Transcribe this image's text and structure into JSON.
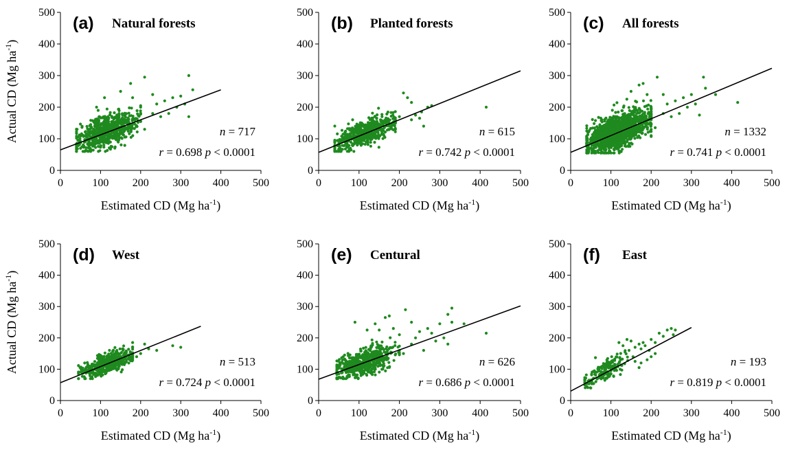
{
  "colors": {
    "points": "#1f8a1f",
    "fit_line": "#000000",
    "axes": "#000000"
  },
  "chart_data": [
    {
      "type": "scatter",
      "letter": "(a)",
      "title": "Natural forests",
      "xlabel": "Estimated CD (Mg ha-1)",
      "ylabel": "Actual CD (Mg ha-1)",
      "xlim": [
        0,
        500
      ],
      "ylim": [
        0,
        500
      ],
      "xticks": [
        "0",
        "100",
        "200",
        "300",
        "400",
        "500"
      ],
      "yticks": [
        "0",
        "100",
        "200",
        "300",
        "400",
        "500"
      ],
      "n_label": "n",
      "n_value": "= 717",
      "r_label": "r",
      "r_value": "= 0.698",
      "p_label": "p",
      "p_value": "< 0.0001",
      "n": 717,
      "r": 0.698,
      "fit": {
        "x": [
          0,
          400
        ],
        "y": [
          65,
          255
        ]
      },
      "cloud": {
        "x_range": [
          40,
          200
        ],
        "y_range": [
          60,
          240
        ],
        "center": [
          115,
          125
        ]
      },
      "points": [
        {
          "x": 210,
          "y": 295
        },
        {
          "x": 320,
          "y": 300
        },
        {
          "x": 175,
          "y": 275
        },
        {
          "x": 150,
          "y": 250
        },
        {
          "x": 230,
          "y": 240
        },
        {
          "x": 300,
          "y": 235
        },
        {
          "x": 330,
          "y": 255
        },
        {
          "x": 290,
          "y": 200
        },
        {
          "x": 260,
          "y": 220
        },
        {
          "x": 180,
          "y": 230
        },
        {
          "x": 240,
          "y": 210
        },
        {
          "x": 250,
          "y": 170
        },
        {
          "x": 270,
          "y": 180
        },
        {
          "x": 200,
          "y": 200
        },
        {
          "x": 310,
          "y": 210
        },
        {
          "x": 280,
          "y": 230
        },
        {
          "x": 320,
          "y": 170
        },
        {
          "x": 230,
          "y": 180
        },
        {
          "x": 210,
          "y": 130
        },
        {
          "x": 40,
          "y": 70
        },
        {
          "x": 60,
          "y": 60
        },
        {
          "x": 90,
          "y": 200
        },
        {
          "x": 110,
          "y": 230
        }
      ]
    },
    {
      "type": "scatter",
      "letter": "(b)",
      "title": "Planted forests",
      "xlabel": "Estimated CD (Mg ha-1)",
      "ylabel": "",
      "xlim": [
        0,
        500
      ],
      "ylim": [
        0,
        500
      ],
      "xticks": [
        "0",
        "100",
        "200",
        "300",
        "400",
        "500"
      ],
      "yticks": [
        "0",
        "100",
        "200",
        "300",
        "400",
        "500"
      ],
      "n_label": "n",
      "n_value": "= 615",
      "r_label": "r",
      "r_value": "= 0.742",
      "p_label": "p",
      "p_value": "< 0.0001",
      "n": 615,
      "r": 0.742,
      "fit": {
        "x": [
          0,
          500
        ],
        "y": [
          57,
          315
        ]
      },
      "cloud": {
        "x_range": [
          40,
          190
        ],
        "y_range": [
          60,
          200
        ],
        "center": [
          115,
          120
        ]
      },
      "points": [
        {
          "x": 210,
          "y": 245
        },
        {
          "x": 230,
          "y": 215
        },
        {
          "x": 220,
          "y": 230
        },
        {
          "x": 270,
          "y": 200
        },
        {
          "x": 280,
          "y": 205
        },
        {
          "x": 415,
          "y": 200
        },
        {
          "x": 255,
          "y": 185
        },
        {
          "x": 240,
          "y": 175
        },
        {
          "x": 260,
          "y": 140
        },
        {
          "x": 200,
          "y": 170
        },
        {
          "x": 230,
          "y": 160
        },
        {
          "x": 250,
          "y": 165
        },
        {
          "x": 190,
          "y": 130
        },
        {
          "x": 45,
          "y": 60
        }
      ]
    },
    {
      "type": "scatter",
      "letter": "(c)",
      "title": "All forests",
      "xlabel": "Estimated CD (Mg ha-1)",
      "ylabel": "",
      "xlim": [
        0,
        500
      ],
      "ylim": [
        0,
        500
      ],
      "xticks": [
        "0",
        "100",
        "200",
        "300",
        "400",
        "500"
      ],
      "yticks": [
        "0",
        "100",
        "200",
        "300",
        "400",
        "500"
      ],
      "n_label": "n",
      "n_value": "= 1332",
      "r_label": "r",
      "r_value": "= 0.741",
      "p_label": "p",
      "p_value": "< 0.0001",
      "n": 1332,
      "r": 0.741,
      "fit": {
        "x": [
          0,
          500
        ],
        "y": [
          57,
          323
        ]
      },
      "cloud": {
        "x_range": [
          40,
          200
        ],
        "y_range": [
          55,
          240
        ],
        "center": [
          115,
          122
        ]
      },
      "points": [
        {
          "x": 215,
          "y": 295
        },
        {
          "x": 330,
          "y": 295
        },
        {
          "x": 180,
          "y": 275
        },
        {
          "x": 170,
          "y": 270
        },
        {
          "x": 150,
          "y": 250
        },
        {
          "x": 230,
          "y": 240
        },
        {
          "x": 300,
          "y": 240
        },
        {
          "x": 335,
          "y": 260
        },
        {
          "x": 360,
          "y": 240
        },
        {
          "x": 415,
          "y": 215
        },
        {
          "x": 290,
          "y": 200
        },
        {
          "x": 260,
          "y": 220
        },
        {
          "x": 240,
          "y": 210
        },
        {
          "x": 250,
          "y": 170
        },
        {
          "x": 270,
          "y": 180
        },
        {
          "x": 200,
          "y": 200
        },
        {
          "x": 310,
          "y": 210
        },
        {
          "x": 280,
          "y": 230
        },
        {
          "x": 320,
          "y": 175
        },
        {
          "x": 230,
          "y": 180
        },
        {
          "x": 210,
          "y": 135
        },
        {
          "x": 190,
          "y": 240
        },
        {
          "x": 45,
          "y": 60
        }
      ]
    },
    {
      "type": "scatter",
      "letter": "(d)",
      "title": "West",
      "xlabel": "Estimated CD (Mg ha-1)",
      "ylabel": "Actual CD (Mg ha-1)",
      "xlim": [
        0,
        500
      ],
      "ylim": [
        0,
        500
      ],
      "xticks": [
        "0",
        "100",
        "200",
        "300",
        "400",
        "500"
      ],
      "yticks": [
        "0",
        "100",
        "200",
        "300",
        "400",
        "500"
      ],
      "n_label": "n",
      "n_value": "= 513",
      "r_label": "r",
      "r_value": "= 0.724",
      "p_label": "p",
      "p_value": "< 0.0001",
      "n": 513,
      "r": 0.724,
      "fit": {
        "x": [
          0,
          350
        ],
        "y": [
          57,
          237
        ]
      },
      "cloud": {
        "x_range": [
          45,
          180
        ],
        "y_range": [
          70,
          180
        ],
        "center": [
          120,
          120
        ]
      },
      "points": [
        {
          "x": 210,
          "y": 180
        },
        {
          "x": 180,
          "y": 185
        },
        {
          "x": 280,
          "y": 175
        },
        {
          "x": 300,
          "y": 170
        },
        {
          "x": 240,
          "y": 160
        },
        {
          "x": 200,
          "y": 150
        },
        {
          "x": 220,
          "y": 165
        },
        {
          "x": 190,
          "y": 140
        },
        {
          "x": 45,
          "y": 85
        }
      ]
    },
    {
      "type": "scatter",
      "letter": "(e)",
      "title": "Centural",
      "xlabel": "Estimated CD (Mg ha-1)",
      "ylabel": "",
      "xlim": [
        0,
        500
      ],
      "ylim": [
        0,
        500
      ],
      "xticks": [
        "0",
        "100",
        "200",
        "300",
        "400",
        "500"
      ],
      "yticks": [
        "0",
        "100",
        "200",
        "300",
        "400",
        "500"
      ],
      "n_label": "n",
      "n_value": "= 626",
      "r_label": "r",
      "r_value": "= 0.686",
      "p_label": "p",
      "p_value": "< 0.0001",
      "n": 626,
      "r": 0.686,
      "fit": {
        "x": [
          0,
          500
        ],
        "y": [
          68,
          302
        ]
      },
      "cloud": {
        "x_range": [
          45,
          200
        ],
        "y_range": [
          70,
          230
        ],
        "center": [
          110,
          122
        ]
      },
      "points": [
        {
          "x": 215,
          "y": 290
        },
        {
          "x": 330,
          "y": 295
        },
        {
          "x": 320,
          "y": 275
        },
        {
          "x": 175,
          "y": 270
        },
        {
          "x": 165,
          "y": 265
        },
        {
          "x": 90,
          "y": 250
        },
        {
          "x": 140,
          "y": 245
        },
        {
          "x": 230,
          "y": 250
        },
        {
          "x": 300,
          "y": 245
        },
        {
          "x": 360,
          "y": 245
        },
        {
          "x": 415,
          "y": 215
        },
        {
          "x": 330,
          "y": 250
        },
        {
          "x": 270,
          "y": 230
        },
        {
          "x": 250,
          "y": 220
        },
        {
          "x": 240,
          "y": 200
        },
        {
          "x": 290,
          "y": 190
        },
        {
          "x": 200,
          "y": 210
        },
        {
          "x": 310,
          "y": 200
        },
        {
          "x": 280,
          "y": 215
        },
        {
          "x": 320,
          "y": 180
        },
        {
          "x": 230,
          "y": 180
        },
        {
          "x": 260,
          "y": 160
        },
        {
          "x": 210,
          "y": 150
        },
        {
          "x": 185,
          "y": 230
        },
        {
          "x": 150,
          "y": 225
        },
        {
          "x": 120,
          "y": 225
        },
        {
          "x": 50,
          "y": 85
        },
        {
          "x": 60,
          "y": 75
        }
      ]
    },
    {
      "type": "scatter",
      "letter": "(f)",
      "title": "East",
      "xlabel": "Estimated CD (Mg ha-1)",
      "ylabel": "",
      "xlim": [
        0,
        500
      ],
      "ylim": [
        0,
        500
      ],
      "xticks": [
        "0",
        "100",
        "200",
        "300",
        "400",
        "500"
      ],
      "yticks": [
        "0",
        "100",
        "200",
        "300",
        "400",
        "500"
      ],
      "n_label": "n",
      "n_value": "= 193",
      "r_label": "r",
      "r_value": "= 0.819",
      "p_label": "p",
      "p_value": "< 0.0001",
      "n": 193,
      "r": 0.819,
      "fit": {
        "x": [
          0,
          300
        ],
        "y": [
          30,
          233
        ]
      },
      "cloud": {
        "x_range": [
          35,
          150
        ],
        "y_range": [
          40,
          160
        ],
        "center": [
          85,
          95
        ]
      },
      "points": [
        {
          "x": 240,
          "y": 225
        },
        {
          "x": 250,
          "y": 230
        },
        {
          "x": 260,
          "y": 225
        },
        {
          "x": 230,
          "y": 205
        },
        {
          "x": 255,
          "y": 210
        },
        {
          "x": 220,
          "y": 215
        },
        {
          "x": 200,
          "y": 195
        },
        {
          "x": 210,
          "y": 185
        },
        {
          "x": 180,
          "y": 185
        },
        {
          "x": 185,
          "y": 175
        },
        {
          "x": 170,
          "y": 180
        },
        {
          "x": 195,
          "y": 160
        },
        {
          "x": 210,
          "y": 150
        },
        {
          "x": 200,
          "y": 140
        },
        {
          "x": 175,
          "y": 165
        },
        {
          "x": 160,
          "y": 170
        },
        {
          "x": 150,
          "y": 190
        },
        {
          "x": 140,
          "y": 195
        },
        {
          "x": 130,
          "y": 175
        },
        {
          "x": 120,
          "y": 185
        },
        {
          "x": 190,
          "y": 130
        },
        {
          "x": 175,
          "y": 120
        },
        {
          "x": 170,
          "y": 105
        },
        {
          "x": 160,
          "y": 125
        },
        {
          "x": 155,
          "y": 140
        },
        {
          "x": 145,
          "y": 160
        },
        {
          "x": 135,
          "y": 155
        },
        {
          "x": 40,
          "y": 45
        },
        {
          "x": 35,
          "y": 50
        },
        {
          "x": 50,
          "y": 40
        }
      ]
    }
  ]
}
